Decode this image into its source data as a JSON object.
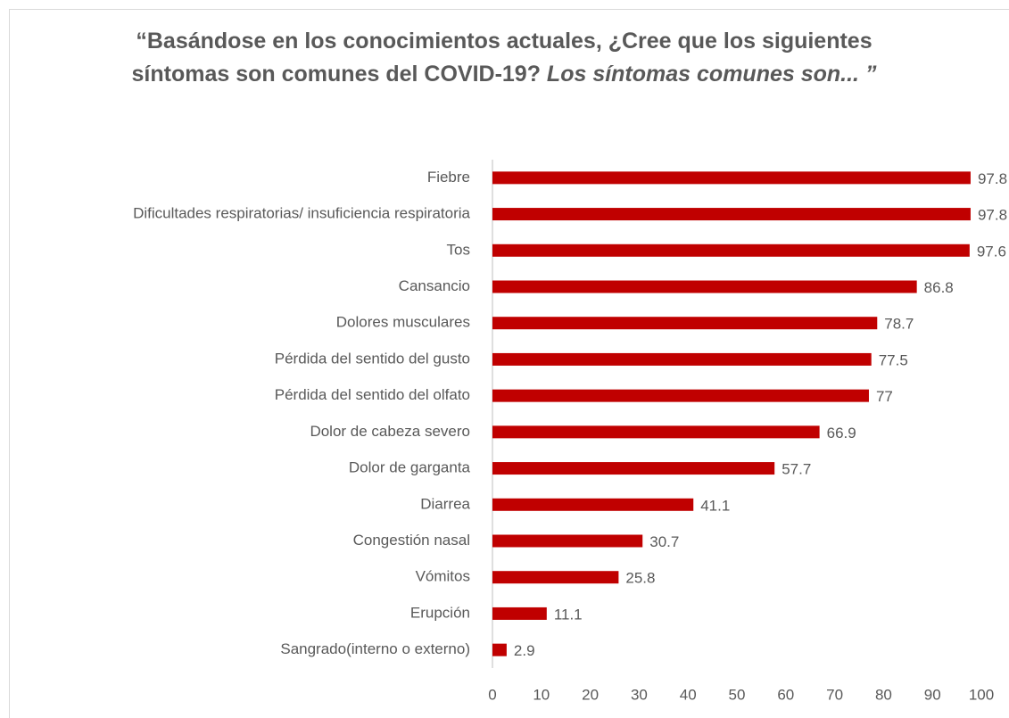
{
  "chart_data": {
    "type": "barh",
    "title": [
      "“Basándose en los conocimientos actuales, ¿Cree que los siguientes síntomas son comunes del COVID-19?",
      "Los síntomas comunes son... ”"
    ],
    "categories": [
      "Fiebre",
      "Dificultades respiratorias/ insuficiencia respiratoria",
      "Tos",
      "Cansancio",
      "Dolores musculares",
      "Pérdida del sentido del gusto",
      "Pérdida del sentido del olfato",
      "Dolor de cabeza severo",
      "Dolor de garganta",
      "Diarrea",
      "Congestión nasal",
      "Vómitos",
      "Erupción",
      "Sangrado(interno o externo)"
    ],
    "values": [
      97.8,
      97.8,
      97.6,
      86.8,
      78.7,
      77.5,
      77,
      66.9,
      57.7,
      41.1,
      30.7,
      25.8,
      11.1,
      2.9
    ],
    "color": "#c00000",
    "xlim": [
      0,
      100
    ],
    "xticks": [
      0,
      10,
      20,
      30,
      40,
      50,
      60,
      70,
      80,
      90,
      100
    ],
    "grid": false
  }
}
